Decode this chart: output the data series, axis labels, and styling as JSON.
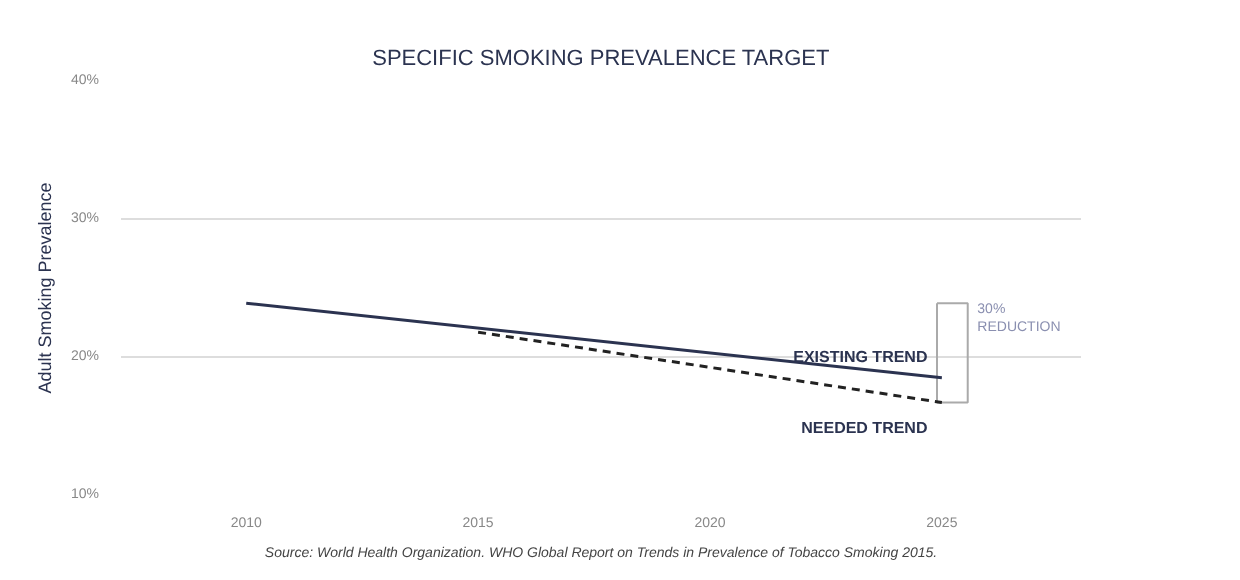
{
  "chart_data": {
    "type": "line",
    "title": "SPECIFIC SMOKING PREVALENCE TARGET",
    "ylabel": "Adult Smoking Prevalence",
    "series": [
      {
        "name": "EXISTING TREND",
        "color": "#2b3350",
        "x": [
          2010,
          2025
        ],
        "values": [
          23.9,
          18.5
        ],
        "line_style": "solid"
      },
      {
        "name": "NEEDED TREND",
        "color": "#222222",
        "x": [
          2015,
          2025
        ],
        "values": [
          21.8,
          16.7
        ],
        "line_style": "dashed"
      }
    ],
    "xlim": [
      2007.3,
      2028
    ],
    "ylim": [
      10,
      40
    ],
    "xticks": [
      2010,
      2015,
      2020,
      2025
    ],
    "yticks": [
      {
        "value": 10,
        "label": "10%"
      },
      {
        "value": 20,
        "label": "20%"
      },
      {
        "value": 30,
        "label": "30%"
      },
      {
        "value": 40,
        "label": "40%"
      }
    ],
    "grid": "y",
    "marker": "none",
    "annotations": [
      {
        "text": "30% REDUCTION"
      },
      "Source: World Health Organization. WHO Global Report on Trends in Prevalence of Tobacco Smoking 2015."
    ]
  }
}
